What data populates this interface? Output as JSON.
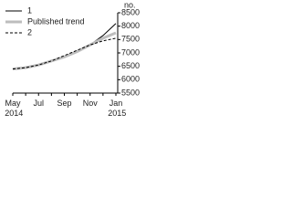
{
  "chart_data": {
    "type": "line",
    "y_label": "no.",
    "categories": [
      "May 2014",
      null,
      "Jul",
      null,
      "Sep",
      null,
      "Nov",
      null,
      "Jan 2015"
    ],
    "series": [
      {
        "name": "1",
        "color": "#000000",
        "dash": false,
        "linewidth": 1,
        "values": [
          6400,
          6450,
          6550,
          6700,
          6850,
          7050,
          7300,
          7650,
          8100
        ]
      },
      {
        "name": "Published trend",
        "color": "#bdbdbd",
        "dash": false,
        "linewidth": 3,
        "values": [
          6400,
          6450,
          6550,
          6700,
          6850,
          7050,
          7300,
          7550,
          7750
        ]
      },
      {
        "name": "2",
        "color": "#000000",
        "dash": true,
        "linewidth": 1,
        "values": [
          6400,
          6450,
          6550,
          6700,
          6900,
          7100,
          7300,
          7450,
          7550
        ]
      }
    ],
    "ylim": [
      5500,
      8500
    ],
    "yticks": [
      5500,
      6000,
      6500,
      7000,
      7500,
      8000,
      8500
    ],
    "grid": false
  }
}
